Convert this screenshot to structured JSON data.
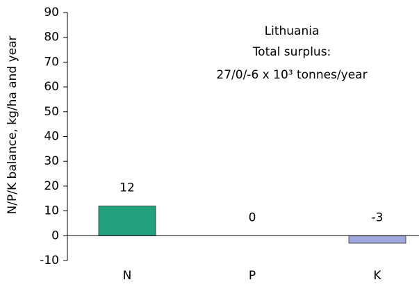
{
  "chart_data": {
    "type": "bar",
    "y_label": "N/P/K balance, kg/ha and year",
    "annotations": [
      "Lithuania",
      "Total surplus:",
      "27/0/-6 x 10³ tonnes/year"
    ],
    "categories": [
      "N",
      "P",
      "K"
    ],
    "series": [
      {
        "name": "balance",
        "colors": [
          "#22a07c",
          "#7f7fbf",
          "#9ea6db"
        ],
        "values": [
          12,
          0,
          -3
        ]
      }
    ],
    "ylim": [
      -10,
      90
    ],
    "yticks": [
      -10,
      0,
      10,
      20,
      30,
      40,
      50,
      60,
      70,
      80,
      90
    ],
    "grid": false
  }
}
